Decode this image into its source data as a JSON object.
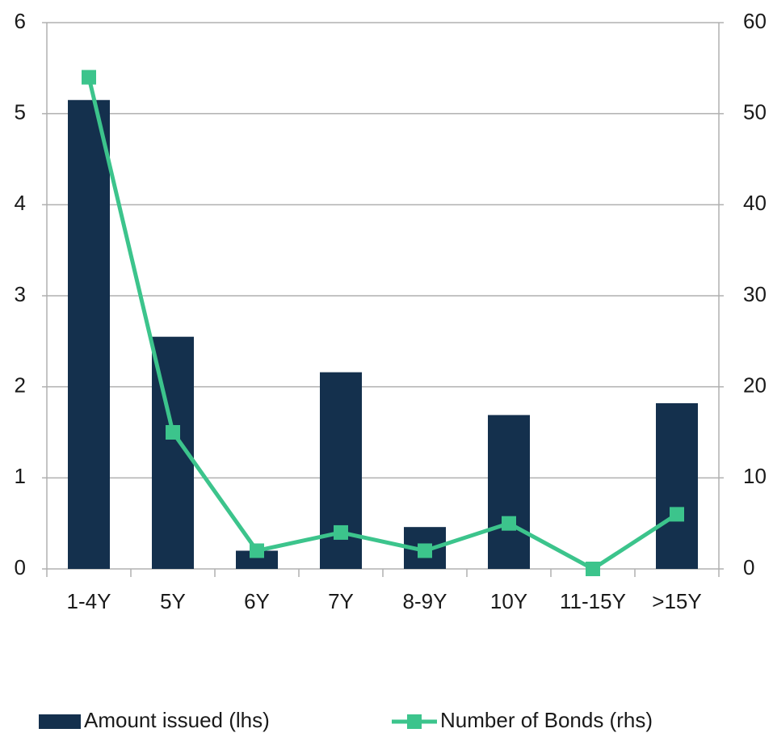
{
  "chart_data": {
    "type": "bar-line",
    "categories": [
      "1-4Y",
      "5Y",
      "6Y",
      "7Y",
      "8-9Y",
      "10Y",
      "11-15Y",
      ">15Y"
    ],
    "series": [
      {
        "name": "Amount issued (lhs)",
        "color": "#14304d",
        "type": "bar",
        "values": [
          5.15,
          2.55,
          0.2,
          2.16,
          0.46,
          1.69,
          0,
          1.82
        ]
      },
      {
        "name": "Number of Bonds (rhs)",
        "color": "#3cc48c",
        "type": "line",
        "axis": "y2",
        "values": [
          54,
          15,
          2,
          4,
          2,
          5,
          0,
          6
        ]
      }
    ],
    "ylim": [
      0,
      6
    ],
    "yticks": [
      0,
      1,
      2,
      3,
      4,
      5,
      6
    ],
    "y2lim": [
      0,
      60
    ],
    "y2ticks": [
      0,
      10,
      20,
      30,
      40,
      50,
      60
    ],
    "grid": true,
    "legend": "bottom"
  }
}
